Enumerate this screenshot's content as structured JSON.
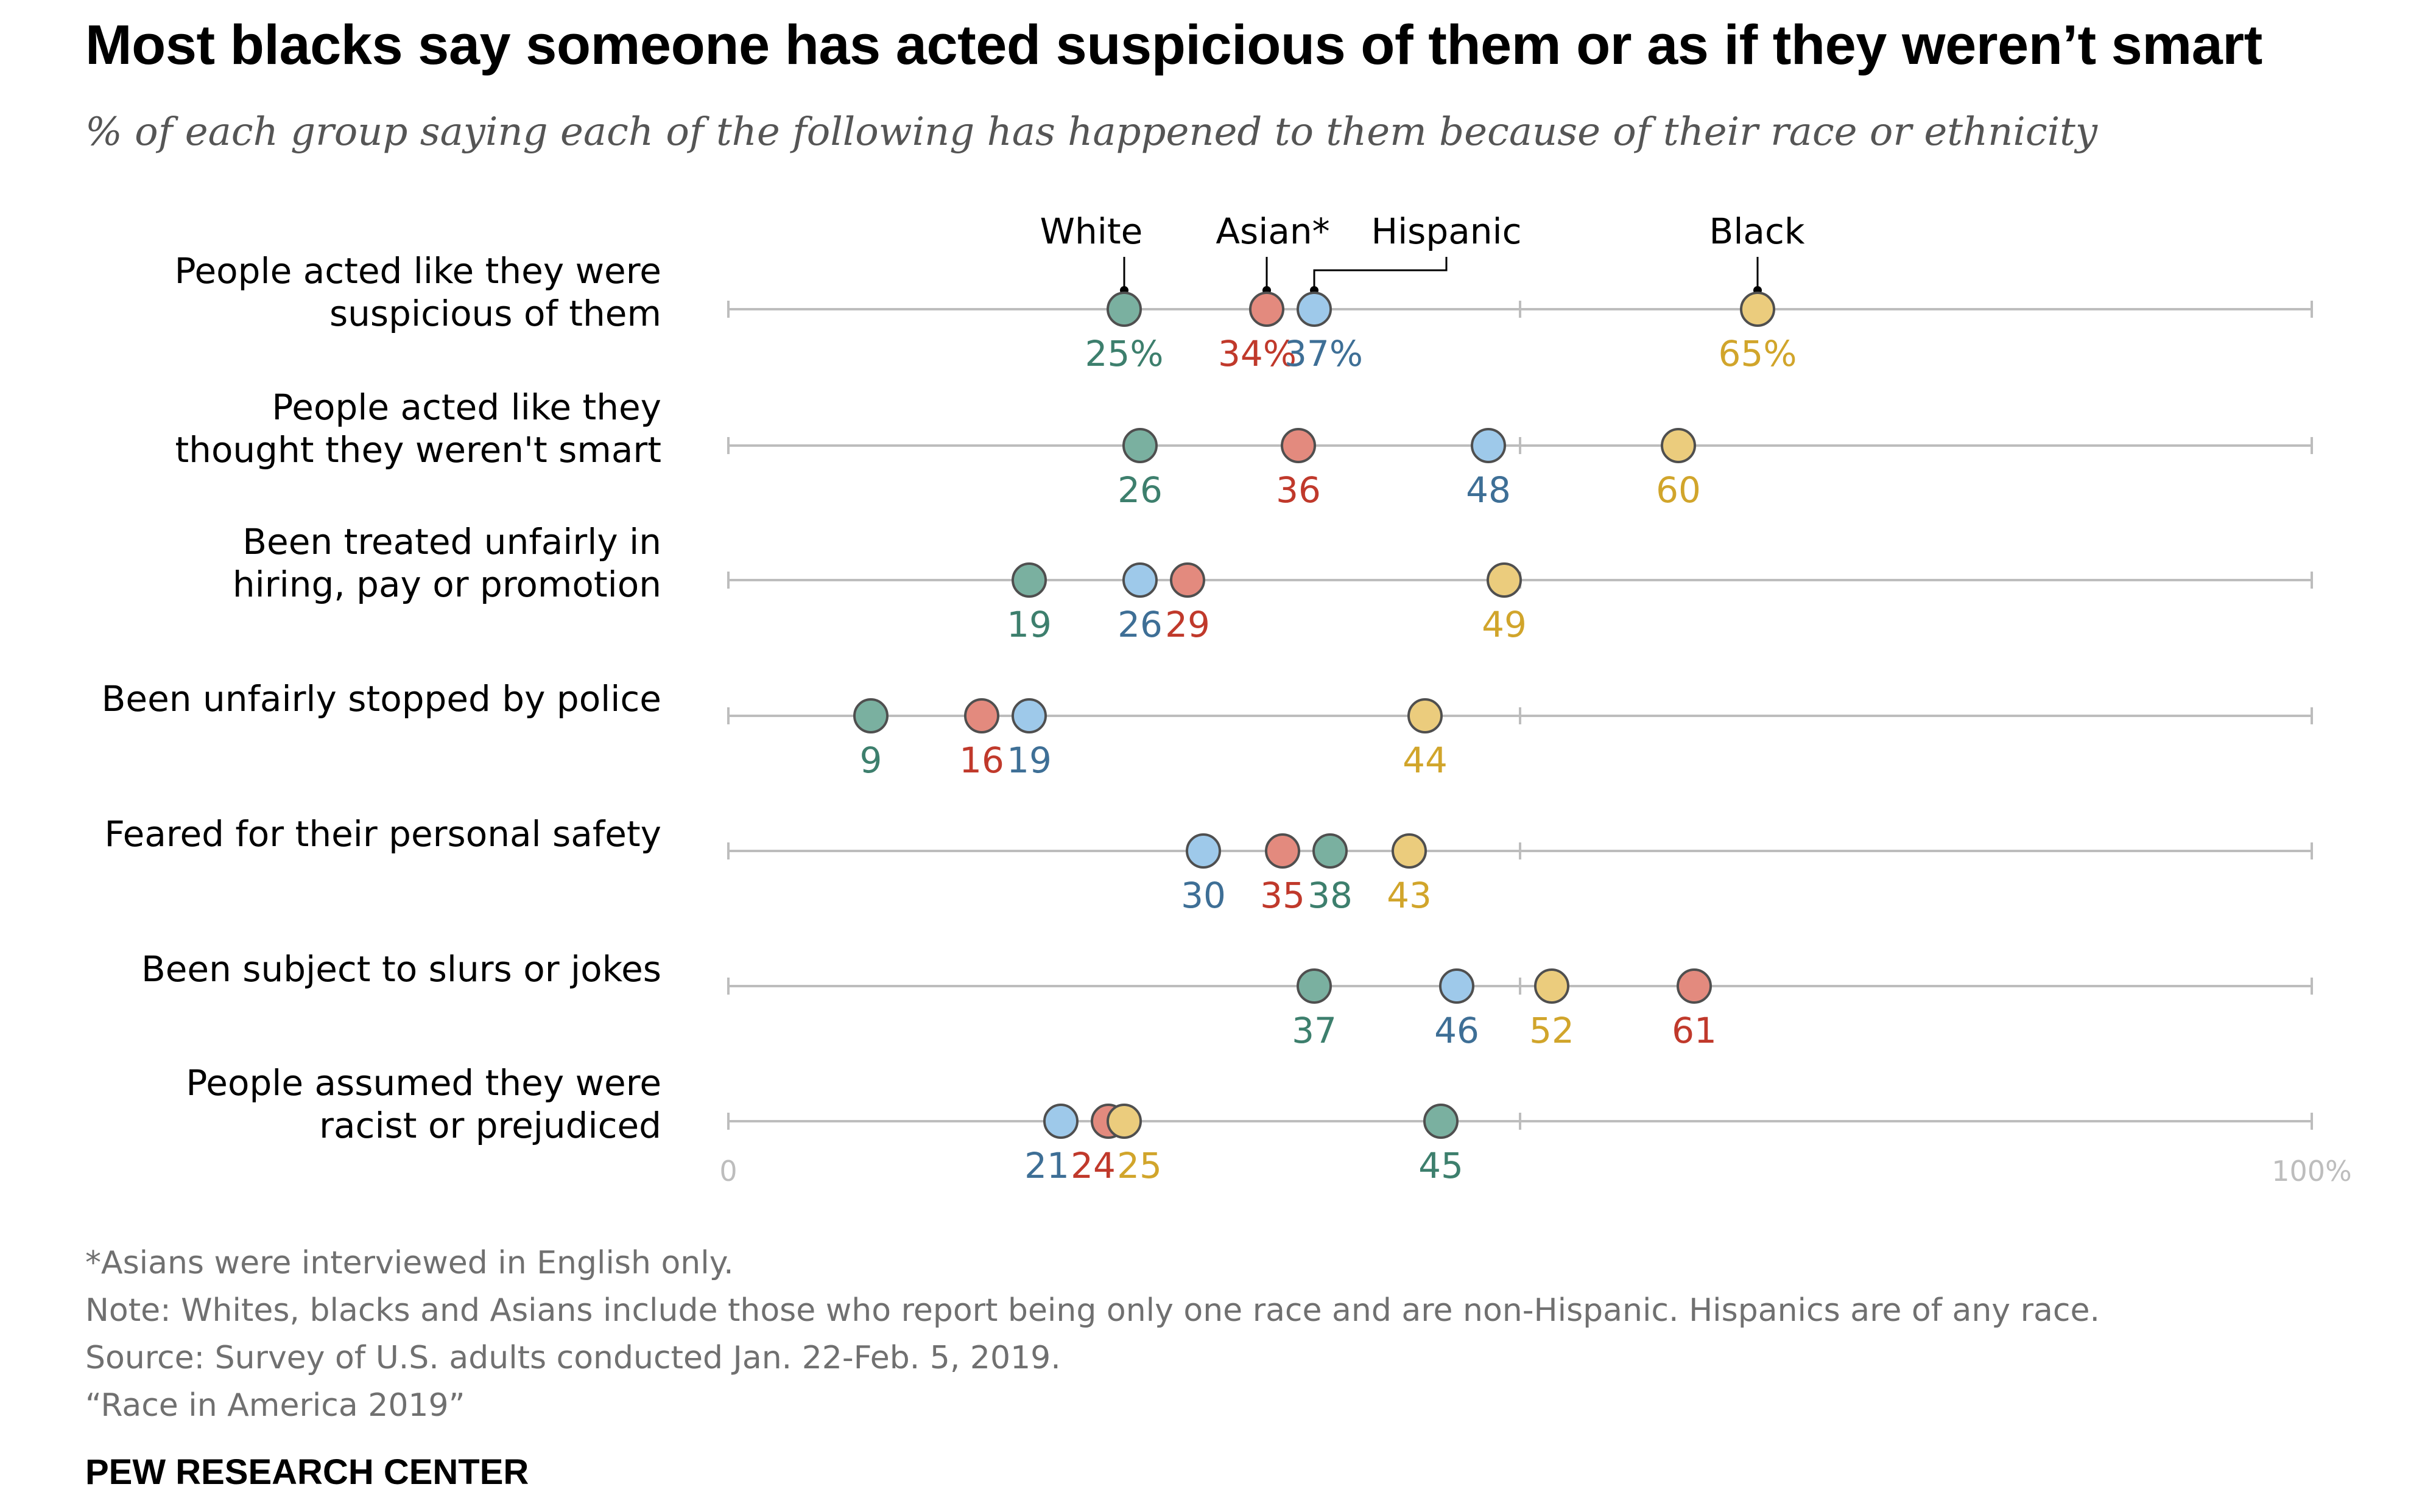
{
  "header": {
    "title": "Most blacks say someone has acted suspicious of them or as if they weren’t smart",
    "subtitle": "% of each group saying each of the following has happened to them because of their race or ethnicity"
  },
  "chart_data": {
    "type": "scatter",
    "title": "Most blacks say someone has acted suspicious of them or as if they weren’t smart",
    "subtitle": "% of each group saying each of the following has happened to them because of their race or ethnicity",
    "xlim": [
      0,
      100
    ],
    "axis_labels": {
      "min": "0",
      "max": "100%"
    },
    "categories": [
      [
        "People acted like they were",
        "suspicious of them"
      ],
      [
        "People acted like they",
        "thought they weren't smart"
      ],
      [
        "Been treated unfairly in",
        "hiring, pay or promotion"
      ],
      [
        "Been unfairly stopped by police"
      ],
      [
        "Feared for their personal safety"
      ],
      [
        "Been subject to slurs or jokes"
      ],
      [
        "People assumed they were",
        "racist or prejudiced"
      ]
    ],
    "series": [
      {
        "name": "White",
        "color": "#7ab0a0",
        "text_color": "#3d7f6d",
        "values": [
          25,
          26,
          19,
          9,
          38,
          37,
          45
        ]
      },
      {
        "name": "Asian*",
        "color": "#e38a7e",
        "text_color": "#c0392b",
        "values": [
          34,
          36,
          29,
          16,
          35,
          61,
          24
        ]
      },
      {
        "name": "Hispanic",
        "color": "#9ec9ea",
        "text_color": "#3e6f96",
        "values": [
          37,
          48,
          26,
          19,
          30,
          46,
          21
        ]
      },
      {
        "name": "Black",
        "color": "#ebcc7d",
        "text_color": "#d1a52b",
        "values": [
          65,
          60,
          49,
          44,
          43,
          52,
          25
        ]
      }
    ],
    "first_row_label_format": "{v}%",
    "grid": false,
    "legend": "inline-top"
  },
  "footer": {
    "notes": [
      "*Asians were interviewed in English only.",
      "Note: Whites, blacks and Asians include those who report being only one race and are non-Hispanic. Hispanics are of any race.",
      "Source: Survey of U.S. adults conducted Jan. 22-Feb. 5, 2019.",
      "“Race in America 2019”"
    ],
    "brand": "PEW RESEARCH CENTER"
  }
}
